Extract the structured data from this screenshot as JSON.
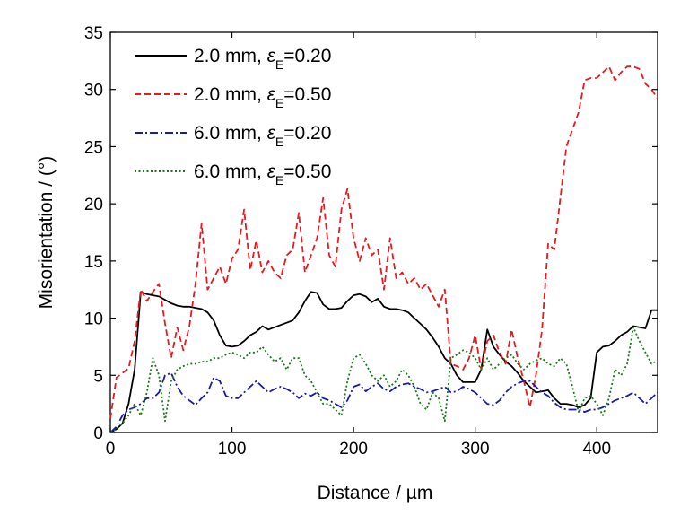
{
  "chart_data": {
    "type": "line",
    "xlabel": "Distance / µm",
    "ylabel": "Misorientation / (°)",
    "xlim": [
      0,
      450
    ],
    "ylim": [
      0,
      35
    ],
    "xticks": [
      0,
      100,
      200,
      300,
      400
    ],
    "yticks": [
      0,
      5,
      10,
      15,
      20,
      25,
      30,
      35
    ],
    "grid": false,
    "legend_position": "top-left",
    "series": [
      {
        "name": "2.0 mm, εE=0.20",
        "legend": {
          "prefix": "2.0 mm, ",
          "var": "ε",
          "sub": "E",
          "suffix": "=0.20"
        },
        "color": "#000000",
        "style": "solid",
        "x": [
          0,
          5,
          10,
          15,
          20,
          25,
          30,
          35,
          40,
          45,
          50,
          55,
          60,
          65,
          70,
          75,
          80,
          85,
          90,
          95,
          100,
          105,
          110,
          115,
          120,
          125,
          130,
          135,
          140,
          145,
          150,
          155,
          160,
          165,
          170,
          175,
          180,
          185,
          190,
          195,
          200,
          205,
          210,
          215,
          220,
          225,
          230,
          235,
          240,
          245,
          250,
          255,
          260,
          265,
          270,
          275,
          280,
          285,
          290,
          295,
          300,
          305,
          310,
          315,
          320,
          325,
          330,
          335,
          340,
          345,
          350,
          355,
          360,
          365,
          370,
          375,
          380,
          385,
          390,
          395,
          400,
          405,
          410,
          415,
          420,
          425,
          430,
          435,
          440,
          445,
          450
        ],
        "y": [
          0,
          0.3,
          0.8,
          2.5,
          5.5,
          12.3,
          12.1,
          12.0,
          11.9,
          11.6,
          11.3,
          11.1,
          11.0,
          11.0,
          10.9,
          10.8,
          10.5,
          9.8,
          8.5,
          7.6,
          7.5,
          7.6,
          8.0,
          8.5,
          8.8,
          9.3,
          9.0,
          9.2,
          9.4,
          9.6,
          9.8,
          10.5,
          11.5,
          12.3,
          12.2,
          11.2,
          10.8,
          10.8,
          10.9,
          11.5,
          12.0,
          12.1,
          11.9,
          11.4,
          11.7,
          11.0,
          10.8,
          10.8,
          10.7,
          10.5,
          10.0,
          9.5,
          9.0,
          8.3,
          7.5,
          6.5,
          6.0,
          5.0,
          4.4,
          4.4,
          4.4,
          5.5,
          9.0,
          7.5,
          6.8,
          6.2,
          5.8,
          5.2,
          4.5,
          4.0,
          3.5,
          3.6,
          3.7,
          3.0,
          2.5,
          2.5,
          2.4,
          2.2,
          2.4,
          3.0,
          7.0,
          7.5,
          7.6,
          8.0,
          8.5,
          8.8,
          9.3,
          9.2,
          9.1,
          10.7,
          10.7
        ]
      },
      {
        "name": "2.0 mm, εE=0.50",
        "legend": {
          "prefix": "2.0 mm, ",
          "var": "ε",
          "sub": "E",
          "suffix": "=0.50"
        },
        "color": "#e8191f",
        "style": "dashed",
        "x": [
          0,
          5,
          10,
          15,
          20,
          25,
          30,
          35,
          40,
          45,
          50,
          55,
          60,
          65,
          70,
          75,
          80,
          85,
          90,
          95,
          100,
          105,
          110,
          115,
          120,
          125,
          130,
          135,
          140,
          145,
          150,
          155,
          160,
          165,
          170,
          175,
          180,
          185,
          190,
          195,
          200,
          205,
          210,
          215,
          220,
          225,
          230,
          235,
          240,
          245,
          250,
          255,
          260,
          265,
          270,
          275,
          280,
          285,
          290,
          295,
          300,
          305,
          310,
          315,
          320,
          325,
          330,
          335,
          340,
          345,
          350,
          355,
          360,
          365,
          370,
          375,
          380,
          385,
          390,
          395,
          400,
          405,
          410,
          415,
          420,
          425,
          430,
          435,
          440,
          445,
          450
        ],
        "y": [
          1.2,
          4.8,
          5.2,
          5.6,
          8.0,
          12.5,
          11.5,
          12.3,
          13.0,
          9.5,
          6.5,
          9.2,
          7.2,
          9.3,
          13.0,
          18.3,
          12.5,
          13.5,
          14.5,
          13.0,
          15.2,
          16.0,
          19.5,
          14.2,
          16.8,
          14.0,
          15.0,
          14.0,
          13.5,
          15.5,
          16.0,
          19.2,
          14.0,
          15.5,
          17.0,
          20.5,
          15.5,
          14.5,
          19.5,
          21.3,
          17.0,
          15.0,
          17.0,
          15.5,
          16.0,
          12.5,
          17.0,
          13.5,
          14.0,
          13.0,
          13.5,
          12.5,
          13.0,
          12.0,
          11.0,
          12.5,
          6.0,
          5.8,
          5.5,
          6.5,
          8.5,
          5.5,
          8.0,
          8.5,
          7.0,
          6.0,
          9.0,
          6.5,
          4.5,
          2.2,
          5.0,
          9.0,
          16.5,
          16.0,
          20.5,
          25.0,
          26.5,
          28.0,
          30.8,
          31.0,
          31.0,
          31.5,
          32.0,
          30.8,
          31.5,
          32.0,
          32.0,
          31.8,
          30.5,
          30.0,
          29.2
        ]
      },
      {
        "name": "6.0 mm, εE=0.20",
        "legend": {
          "prefix": "6.0 mm, ",
          "var": "ε",
          "sub": "E",
          "suffix": "=0.20"
        },
        "color": "#1a1aaa",
        "style": "dashdot",
        "x": [
          0,
          5,
          10,
          15,
          20,
          25,
          30,
          35,
          40,
          45,
          50,
          55,
          60,
          65,
          70,
          75,
          80,
          85,
          90,
          95,
          100,
          105,
          110,
          115,
          120,
          125,
          130,
          135,
          140,
          145,
          150,
          155,
          160,
          165,
          170,
          175,
          180,
          185,
          190,
          195,
          200,
          205,
          210,
          215,
          220,
          225,
          230,
          235,
          240,
          245,
          250,
          255,
          260,
          265,
          270,
          275,
          280,
          285,
          290,
          295,
          300,
          305,
          310,
          315,
          320,
          325,
          330,
          335,
          340,
          345,
          350,
          355,
          360,
          365,
          370,
          375,
          380,
          385,
          390,
          395,
          400,
          405,
          410,
          415,
          420,
          425,
          430,
          435,
          440,
          445,
          450
        ],
        "y": [
          0,
          0.5,
          1.5,
          2.0,
          2.2,
          2.5,
          3.0,
          3.0,
          3.5,
          5.0,
          5.2,
          4.0,
          3.2,
          2.8,
          2.4,
          3.0,
          3.5,
          4.8,
          4.5,
          3.2,
          3.0,
          3.0,
          3.5,
          4.0,
          4.5,
          4.0,
          3.5,
          3.8,
          4.0,
          3.8,
          3.5,
          3.0,
          3.4,
          3.2,
          3.5,
          3.0,
          2.8,
          2.5,
          2.2,
          2.8,
          4.0,
          4.2,
          3.6,
          4.0,
          4.3,
          3.8,
          3.6,
          4.0,
          4.2,
          4.3,
          4.0,
          3.8,
          3.5,
          3.6,
          3.8,
          4.0,
          3.5,
          3.6,
          4.0,
          3.8,
          3.5,
          3.0,
          2.5,
          2.4,
          2.8,
          3.5,
          4.0,
          4.3,
          4.5,
          4.5,
          4.0,
          3.5,
          3.2,
          2.6,
          2.2,
          2.0,
          2.0,
          2.0,
          1.8,
          2.0,
          2.0,
          2.2,
          2.5,
          2.8,
          3.0,
          3.2,
          3.5,
          3.0,
          2.5,
          3.0,
          3.5
        ]
      },
      {
        "name": "6.0 mm,  εE=0.50",
        "legend": {
          "prefix": "6.0 mm,  ",
          "var": "ε",
          "sub": "E",
          "suffix": "=0.50"
        },
        "color": "#1a7a1a",
        "style": "dotted",
        "x": [
          0,
          5,
          10,
          15,
          20,
          25,
          30,
          35,
          40,
          45,
          50,
          55,
          60,
          65,
          70,
          75,
          80,
          85,
          90,
          95,
          100,
          105,
          110,
          115,
          120,
          125,
          130,
          135,
          140,
          145,
          150,
          155,
          160,
          165,
          170,
          175,
          180,
          185,
          190,
          195,
          200,
          205,
          210,
          215,
          220,
          225,
          230,
          235,
          240,
          245,
          250,
          255,
          260,
          265,
          270,
          275,
          280,
          285,
          290,
          295,
          300,
          305,
          310,
          315,
          320,
          325,
          330,
          335,
          340,
          345,
          350,
          355,
          360,
          365,
          370,
          375,
          380,
          385,
          390,
          395,
          400,
          405,
          410,
          415,
          420,
          425,
          430,
          435,
          440,
          445,
          450
        ],
        "y": [
          0,
          0.3,
          0.8,
          1.5,
          2.5,
          1.5,
          3.5,
          6.5,
          5.0,
          1.0,
          4.5,
          5.5,
          5.8,
          6.0,
          6.0,
          6.2,
          6.2,
          6.5,
          6.5,
          6.8,
          7.0,
          6.8,
          6.5,
          7.0,
          7.0,
          7.5,
          6.8,
          6.2,
          6.5,
          5.5,
          6.5,
          6.5,
          5.0,
          4.5,
          3.5,
          2.5,
          2.5,
          2.0,
          1.5,
          4.5,
          6.5,
          6.8,
          6.0,
          5.0,
          4.5,
          5.0,
          4.0,
          4.5,
          5.5,
          5.0,
          4.0,
          2.5,
          2.0,
          3.5,
          3.0,
          1.0,
          6.5,
          6.8,
          7.2,
          7.0,
          6.5,
          5.5,
          6.5,
          5.5,
          6.0,
          6.5,
          6.8,
          6.0,
          5.5,
          6.0,
          6.3,
          6.5,
          6.0,
          5.8,
          6.5,
          6.0,
          4.0,
          1.8,
          3.0,
          3.2,
          2.5,
          1.5,
          3.0,
          5.5,
          5.0,
          6.0,
          9.2,
          8.0,
          7.0,
          6.0,
          6.3
        ]
      }
    ]
  }
}
